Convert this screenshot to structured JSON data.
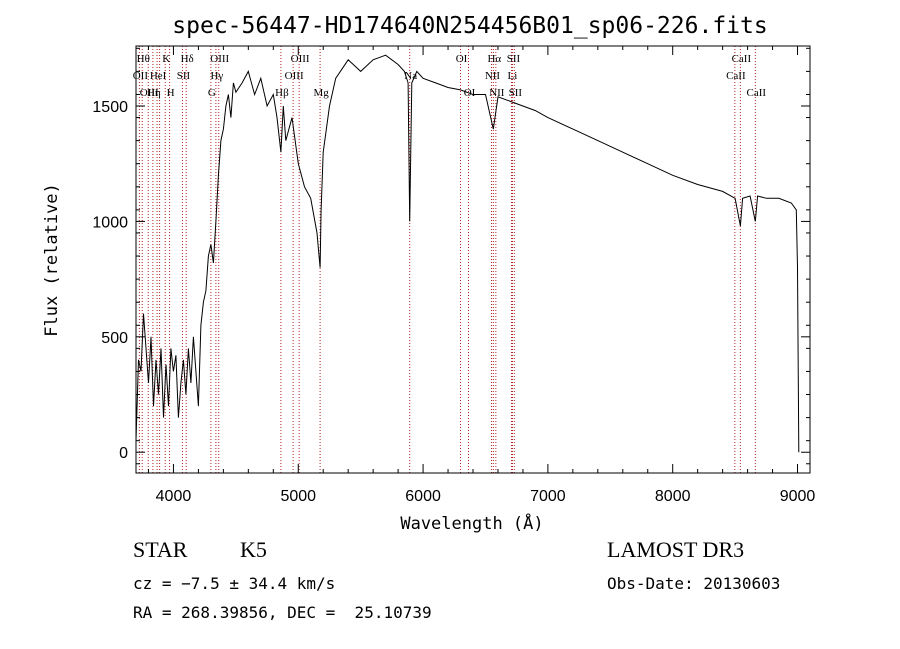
{
  "chart_data": {
    "type": "line",
    "title": "spec-56447-HD174640N254456B01_sp06-226.fits",
    "xlabel": "Wavelength (Å)",
    "ylabel": "Flux (relative)",
    "xlim": [
      3700,
      9100
    ],
    "ylim": [
      -90,
      1760
    ],
    "xticks": [
      "4000",
      "5000",
      "6000",
      "7000",
      "8000",
      "9000"
    ],
    "yticks": [
      "0",
      "500",
      "1000",
      "1500"
    ],
    "series": [
      {
        "x": [
          3700,
          3720,
          3740,
          3760,
          3780,
          3800,
          3820,
          3840,
          3860,
          3880,
          3900,
          3920,
          3940,
          3960,
          3980,
          4000,
          4020,
          4040,
          4060,
          4080,
          4100,
          4120,
          4140,
          4160,
          4180,
          4200,
          4220,
          4240,
          4260,
          4280,
          4300,
          4320,
          4340,
          4360,
          4380,
          4400,
          4420,
          4440,
          4460,
          4480,
          4500,
          4550,
          4600,
          4650,
          4700,
          4750,
          4800,
          4830,
          4861,
          4880,
          4900,
          4950,
          5000,
          5050,
          5100,
          5150,
          5175,
          5183,
          5200,
          5250,
          5300,
          5400,
          5500,
          5600,
          5700,
          5800,
          5850,
          5880,
          5893,
          5910,
          5950,
          6000,
          6100,
          6200,
          6300,
          6400,
          6500,
          6563,
          6600,
          6700,
          6800,
          6900,
          7000,
          7200,
          7400,
          7600,
          7800,
          8000,
          8200,
          8400,
          8500,
          8542,
          8560,
          8620,
          8662,
          8680,
          8750,
          8850,
          8950,
          8990,
          9000,
          9010
        ],
        "y": [
          50,
          400,
          350,
          600,
          450,
          300,
          500,
          200,
          400,
          250,
          450,
          150,
          380,
          200,
          450,
          350,
          420,
          150,
          300,
          400,
          250,
          450,
          300,
          500,
          350,
          200,
          550,
          650,
          700,
          850,
          900,
          820,
          1000,
          1200,
          1350,
          1400,
          1500,
          1550,
          1450,
          1600,
          1560,
          1600,
          1650,
          1550,
          1620,
          1500,
          1550,
          1450,
          1300,
          1500,
          1350,
          1450,
          1250,
          1150,
          1100,
          950,
          800,
          1050,
          1300,
          1500,
          1620,
          1700,
          1650,
          1700,
          1720,
          1680,
          1650,
          1600,
          1000,
          1600,
          1650,
          1620,
          1600,
          1580,
          1570,
          1550,
          1550,
          1400,
          1540,
          1520,
          1500,
          1480,
          1450,
          1400,
          1350,
          1300,
          1250,
          1200,
          1160,
          1130,
          1100,
          980,
          1100,
          1110,
          1000,
          1110,
          1100,
          1100,
          1080,
          1050,
          800,
          0
        ]
      }
    ],
    "lines": [
      {
        "wavelength": 3727,
        "label": "OII",
        "row": 2
      },
      {
        "wavelength": 3750,
        "label": "Hθ",
        "row": 1
      },
      {
        "wavelength": 3798,
        "label": "OIII",
        "row": 3
      },
      {
        "wavelength": 3835,
        "label": "Hη",
        "row": 3
      },
      {
        "wavelength": 3869,
        "label": "HeI",
        "row": 2
      },
      {
        "wavelength": 3889,
        "label": "",
        "row": 0
      },
      {
        "wavelength": 3934,
        "label": "K",
        "row": 1
      },
      {
        "wavelength": 3969,
        "label": "H",
        "row": 3
      },
      {
        "wavelength": 4072,
        "label": "SII",
        "row": 2
      },
      {
        "wavelength": 4102,
        "label": "Hδ",
        "row": 1
      },
      {
        "wavelength": 4300,
        "label": "G",
        "row": 3
      },
      {
        "wavelength": 4340,
        "label": "Hγ",
        "row": 2
      },
      {
        "wavelength": 4363,
        "label": "OIII",
        "row": 1
      },
      {
        "wavelength": 4861,
        "label": "Hβ",
        "row": 3
      },
      {
        "wavelength": 4959,
        "label": "OIII",
        "row": 2
      },
      {
        "wavelength": 5007,
        "label": "OIII",
        "row": 1
      },
      {
        "wavelength": 5175,
        "label": "Mg",
        "row": 3
      },
      {
        "wavelength": 5893,
        "label": "Na",
        "row": 2
      },
      {
        "wavelength": 6300,
        "label": "OI",
        "row": 1
      },
      {
        "wavelength": 6364,
        "label": "OI",
        "row": 3
      },
      {
        "wavelength": 6548,
        "label": "NII",
        "row": 2
      },
      {
        "wavelength": 6563,
        "label": "Hα",
        "row": 1
      },
      {
        "wavelength": 6583,
        "label": "NII",
        "row": 3
      },
      {
        "wavelength": 6708,
        "label": "Li",
        "row": 2
      },
      {
        "wavelength": 6716,
        "label": "SII",
        "row": 1
      },
      {
        "wavelength": 6731,
        "label": "SII",
        "row": 3
      },
      {
        "wavelength": 8498,
        "label": "CaII",
        "row": 2
      },
      {
        "wavelength": 8542,
        "label": "CaII",
        "row": 1
      },
      {
        "wavelength": 8662,
        "label": "CaII",
        "row": 3
      }
    ],
    "line_color": "#b22222",
    "curve_color": "#000000"
  },
  "info": {
    "object_type": "STAR",
    "subclass": "K5",
    "survey": "LAMOST DR3",
    "cz": "cz = −7.5 ± 34.4 km/s",
    "obs_date": "Obs-Date: 20130603",
    "coords": "RA = 268.39856, DEC =  25.10739"
  }
}
